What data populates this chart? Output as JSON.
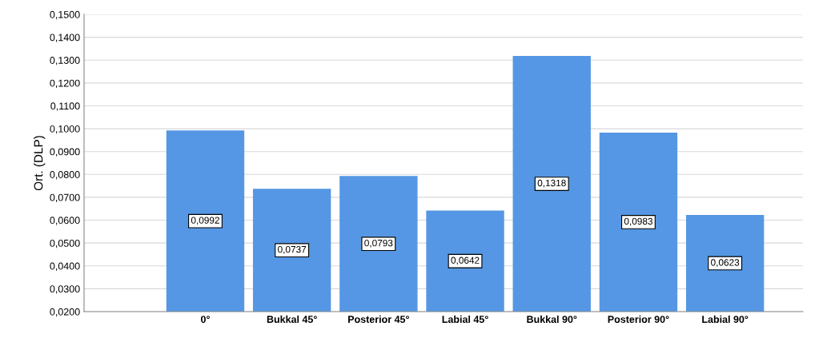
{
  "chart_data": {
    "type": "bar",
    "ylabel": "Ort. (DLP)",
    "categories": [
      "0°",
      "Bukkal 45°",
      "Posterior 45°",
      "Labial 45°",
      "Bukkal 90°",
      "Posterior 90°",
      "Labial 90°"
    ],
    "values": [
      0.0992,
      0.0737,
      0.0793,
      0.0642,
      0.1318,
      0.0983,
      0.0623
    ],
    "value_labels": [
      "0,0992",
      "0,0737",
      "0,0793",
      "0,0642",
      "0,1318",
      "0,0983",
      "0,0623"
    ],
    "color": "#5597e4",
    "ylim": [
      0.02,
      0.15
    ],
    "yticks": [
      {
        "value": 0.02,
        "label": "0,0200"
      },
      {
        "value": 0.03,
        "label": "0,0300"
      },
      {
        "value": 0.04,
        "label": "0,0400"
      },
      {
        "value": 0.05,
        "label": "0,0500"
      },
      {
        "value": 0.06,
        "label": "0,0600"
      },
      {
        "value": 0.07,
        "label": "0,0700"
      },
      {
        "value": 0.08,
        "label": "0,0800"
      },
      {
        "value": 0.09,
        "label": "0,0900"
      },
      {
        "value": 0.1,
        "label": "0,1000"
      },
      {
        "value": 0.11,
        "label": "0,1100"
      },
      {
        "value": 0.12,
        "label": "0,1200"
      },
      {
        "value": 0.13,
        "label": "0,1300"
      },
      {
        "value": 0.14,
        "label": "0,1400"
      },
      {
        "value": 0.15,
        "label": "0,1500"
      }
    ],
    "grid": "y"
  }
}
